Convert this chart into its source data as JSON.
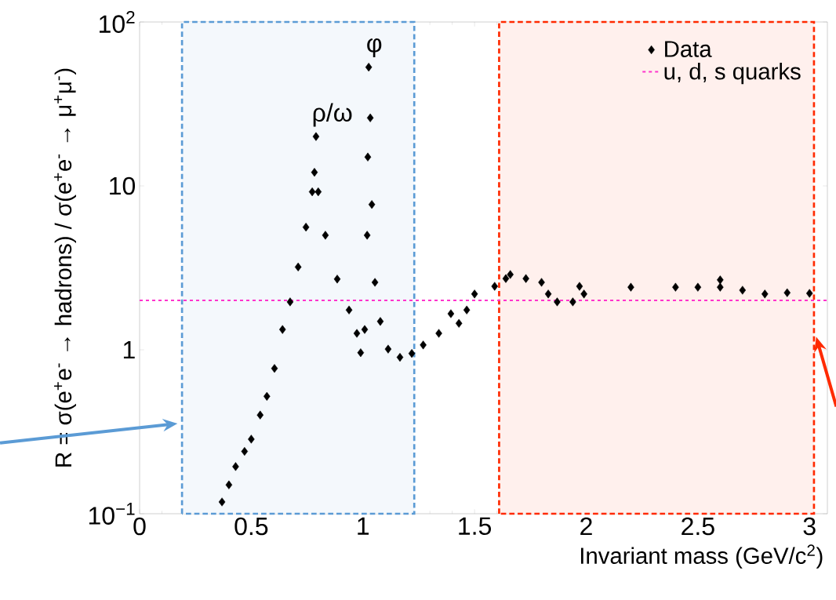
{
  "chart_data": {
    "type": "scatter",
    "xlabel": "Invariant mass (GeV/c$^{2}$)",
    "ylabel": "R = σ(e$^{+}$e$^{-}$ → hadrons) / σ(e$^{+}$e$^{-}$ → μ$^{+}$μ$^{-}$)",
    "x": [
      0.369,
      0.4,
      0.43,
      0.47,
      0.5,
      0.54,
      0.57,
      0.604,
      0.64,
      0.674,
      0.71,
      0.745,
      0.773,
      0.783,
      0.79,
      0.8,
      0.832,
      0.885,
      0.938,
      0.973,
      0.99,
      1.008,
      1.019,
      1.022,
      1.026,
      1.033,
      1.04,
      1.054,
      1.078,
      1.113,
      1.166,
      1.219,
      1.27,
      1.34,
      1.394,
      1.43,
      1.465,
      1.5,
      1.59,
      1.64,
      1.66,
      1.73,
      1.8,
      1.83,
      1.87,
      1.94,
      1.97,
      1.99,
      2.2,
      2.4,
      2.5,
      2.6,
      2.6,
      2.7,
      2.8,
      2.9,
      3.0
    ],
    "series": [
      {
        "name": "Data",
        "color": "#000000",
        "values": [
          0.118,
          0.15,
          0.194,
          0.24,
          0.285,
          0.4,
          0.52,
          0.77,
          1.33,
          1.96,
          3.2,
          5.6,
          9.2,
          12.1,
          20,
          9.2,
          5.0,
          2.7,
          1.75,
          1.26,
          0.96,
          1.33,
          5.0,
          15,
          53,
          26,
          7.7,
          2.58,
          1.49,
          1.01,
          0.9,
          0.95,
          1.07,
          1.26,
          1.66,
          1.45,
          1.75,
          2.19,
          2.44,
          2.72,
          2.88,
          2.72,
          2.58,
          2.19,
          1.96,
          1.96,
          2.44,
          2.19,
          2.41,
          2.41,
          2.41,
          2.67,
          2.41,
          2.31,
          2.19,
          2.23,
          2.21
        ]
      }
    ],
    "marker": "diamond",
    "log": "y",
    "xlim": [
      0,
      3.08
    ],
    "ylim": [
      0.1,
      100
    ],
    "xticks": [
      0,
      0.5,
      1,
      1.5,
      2,
      2.5,
      3
    ],
    "yticks": [
      {
        "value": 0.1,
        "label": "10$^{−1}$"
      },
      1,
      10,
      {
        "value": 100,
        "label": "10$^{2}$"
      }
    ],
    "ref_lines": [
      {
        "axis": "y",
        "value": 2,
        "label": "u, d, s quarks",
        "color": "#ff33cc",
        "line_style": "dashed"
      }
    ],
    "bands": [
      {
        "axis": "x",
        "from": 0.19,
        "to": 1.23,
        "color": "#5b9bd5"
      },
      {
        "axis": "x",
        "from": 1.61,
        "to": 3.02,
        "color": "#ff2a00"
      }
    ],
    "annotations": [
      {
        "text": "ρ/ω",
        "x": 0.783,
        "y": 20
      },
      {
        "text": "φ",
        "x": 1.026,
        "y": 53
      }
    ],
    "legend": "top right",
    "grid": false
  }
}
